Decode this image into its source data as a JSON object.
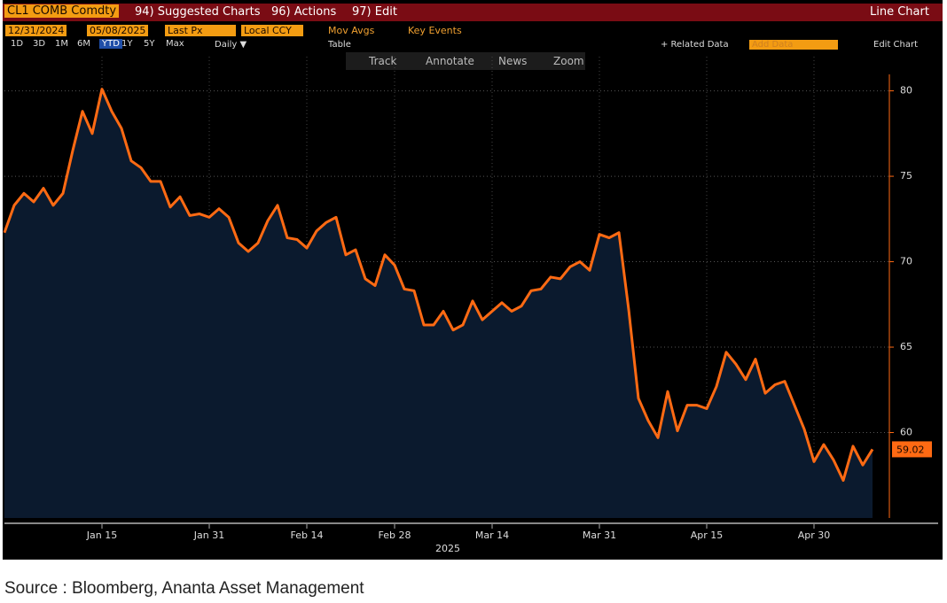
{
  "toolbar": {
    "security": "CL1 COMB Comdty",
    "menus": [
      "94) Suggested Charts",
      "96) Actions",
      "97) Edit"
    ],
    "chart_kind": "Line Chart",
    "start_date": "12/31/2024",
    "end_date": "05/08/2025",
    "field": "Last Px",
    "currency": "Local CCY",
    "mov_avgs": "Mov Avgs",
    "key_events": "Key Events",
    "periods": [
      "1D",
      "3D",
      "1M",
      "6M",
      "YTD",
      "1Y",
      "5Y",
      "Max"
    ],
    "active_period": "YTD",
    "frequency": "Daily ▼",
    "table": "Table",
    "related_data": "+ Related Data",
    "add_data": "Add Data",
    "edit_chart": "Edit Chart",
    "tools": [
      "Track",
      "Annotate",
      "News",
      "Zoom"
    ]
  },
  "chart_data": {
    "type": "line",
    "color": "#ff6a13",
    "fill": "#0b1a2e",
    "grid": true,
    "x_label": "2025",
    "categories": [
      null,
      null,
      null,
      null,
      null,
      null,
      null,
      null,
      null,
      null,
      "Jan 15",
      null,
      null,
      null,
      null,
      null,
      null,
      null,
      null,
      null,
      null,
      "Jan 31",
      null,
      null,
      null,
      null,
      null,
      null,
      null,
      null,
      null,
      "Feb 14",
      null,
      null,
      null,
      null,
      null,
      null,
      null,
      null,
      "Feb 28",
      null,
      null,
      null,
      null,
      null,
      null,
      null,
      null,
      null,
      "Mar 14",
      null,
      null,
      null,
      null,
      null,
      null,
      null,
      null,
      null,
      null,
      "Mar 31",
      null,
      null,
      null,
      null,
      null,
      null,
      null,
      null,
      null,
      null,
      "Apr 15",
      null,
      null,
      null,
      null,
      null,
      null,
      null,
      null,
      null,
      null,
      "Apr 30",
      null,
      null,
      null,
      null,
      null,
      null
    ],
    "values": [
      71.7,
      73.3,
      74.0,
      73.5,
      74.3,
      73.3,
      74.0,
      76.5,
      78.8,
      77.5,
      80.1,
      78.8,
      77.8,
      75.9,
      75.5,
      74.7,
      74.7,
      73.2,
      73.8,
      72.7,
      72.8,
      72.6,
      73.1,
      72.6,
      71.1,
      70.6,
      71.1,
      72.4,
      73.3,
      71.4,
      71.3,
      70.8,
      71.8,
      72.3,
      72.6,
      70.4,
      70.7,
      69.0,
      68.6,
      70.4,
      69.8,
      68.4,
      68.3,
      66.3,
      66.3,
      67.1,
      66.0,
      66.3,
      67.7,
      66.6,
      67.1,
      67.6,
      67.1,
      67.4,
      68.3,
      68.4,
      69.1,
      69.0,
      69.7,
      70.0,
      69.5,
      71.6,
      71.4,
      71.7,
      67.2,
      62.0,
      60.7,
      59.7,
      62.4,
      60.1,
      61.6,
      61.6,
      61.4,
      62.7,
      64.7,
      64.0,
      63.1,
      64.3,
      62.3,
      62.8,
      63.0,
      61.6,
      60.2,
      58.3,
      59.3,
      58.4,
      57.2,
      59.2,
      58.1,
      59.02
    ],
    "ylim": [
      55,
      82
    ],
    "yticks": [
      60,
      65,
      70,
      75,
      80
    ]
  },
  "source": "Source : Bloomberg, Ananta Asset Management"
}
